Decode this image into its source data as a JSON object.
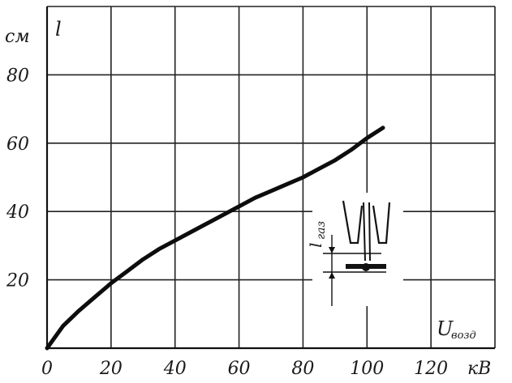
{
  "chart_data": {
    "type": "line",
    "title": "",
    "ylabel_unit": "см",
    "ylabel_symbol": "l",
    "xlabel_unit": "кВ",
    "xlabel_symbol": "U",
    "xlabel_subscript": "возд",
    "xlim": [
      0,
      140
    ],
    "ylim": [
      0,
      100
    ],
    "xticks": [
      {
        "value": 0,
        "label": "0"
      },
      {
        "value": 20,
        "label": "20"
      },
      {
        "value": 40,
        "label": "40"
      },
      {
        "value": 60,
        "label": "60"
      },
      {
        "value": 80,
        "label": "80"
      },
      {
        "value": 100,
        "label": "100"
      },
      {
        "value": 120,
        "label": "120"
      }
    ],
    "yticks": [
      {
        "value": 20,
        "label": "20"
      },
      {
        "value": 40,
        "label": "40"
      },
      {
        "value": 60,
        "label": "60"
      },
      {
        "value": 80,
        "label": "80"
      }
    ],
    "grid": true,
    "legend": "none",
    "series": [
      {
        "x": [
          0,
          5,
          10,
          15,
          20,
          25,
          30,
          35,
          40,
          45,
          50,
          55,
          60,
          65,
          70,
          75,
          80,
          85,
          90,
          95,
          100,
          105
        ],
        "y": [
          0,
          6.5,
          11,
          15,
          19,
          22.5,
          26,
          29,
          31.5,
          34,
          36.5,
          39,
          41.5,
          44,
          46,
          48,
          50,
          52.5,
          55,
          58,
          61.5,
          64.5
        ]
      }
    ],
    "inset": {
      "label_symbol": "l",
      "label_subscript": "газ"
    }
  }
}
